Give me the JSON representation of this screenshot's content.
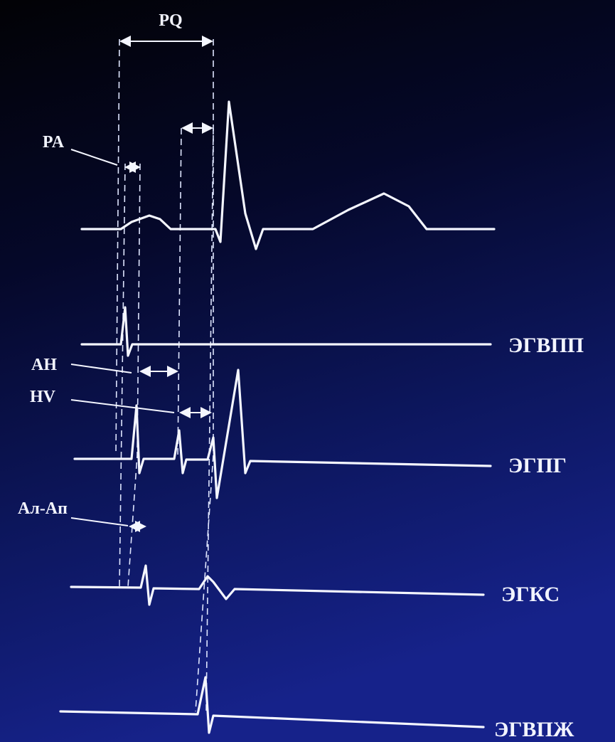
{
  "intervals": [
    "PQ",
    "PA",
    "AH",
    "HV",
    "Ал-Ап"
  ],
  "leads": [
    "ЭГВПП",
    "ЭГПГ",
    "ЭГКС",
    "ЭГВПЖ"
  ]
}
